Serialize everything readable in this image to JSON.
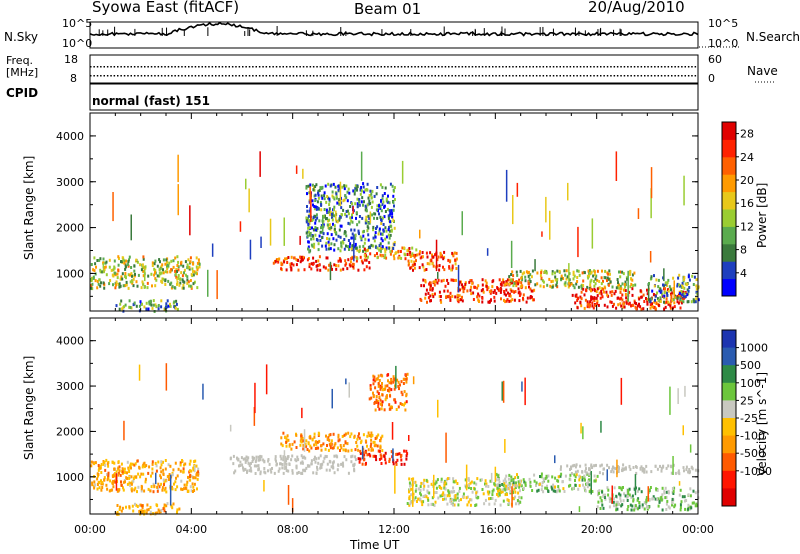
{
  "header": {
    "title": "Syowa East (fitACF)",
    "beam": "Beam 01",
    "date": "20/Aug/2010"
  },
  "top_panels": {
    "nsky_label": "N.Sky",
    "nsearch_label": "N.Search",
    "noise_ticks": [
      "10^5",
      "10^0"
    ],
    "freq_label": "Freq.",
    "freq_unit": "[MHz]",
    "freq_ticks": [
      "18",
      "8"
    ],
    "nave_label": "Nave",
    "nave_ticks": [
      "60",
      "0"
    ],
    "cpid_label": "CPID",
    "cpid_value": "normal (fast) 151"
  },
  "colors": {
    "power": [
      "#0000ff",
      "#1e3fbf",
      "#3a7a3c",
      "#5aab4e",
      "#9acd32",
      "#e8c81a",
      "#ff9a00",
      "#ff6000",
      "#ff2200",
      "#e00000"
    ],
    "velocity": [
      "#1c34b0",
      "#2a5bb0",
      "#2e8a46",
      "#6cc63c",
      "#c8c8c0",
      "#ffc000",
      "#ff9a00",
      "#ff5a00",
      "#ff1500",
      "#e00000"
    ],
    "ground_scatter": "#c0c0b8"
  },
  "chart_data": [
    {
      "type": "heatmap",
      "title": "",
      "xlabel": "",
      "ylabel": "Slant Range [km]",
      "x_ticks": [
        "00:00",
        "04:00",
        "08:00",
        "12:00",
        "16:00",
        "20:00",
        "00:00"
      ],
      "y_ticks": [
        1000,
        2000,
        3000,
        4000
      ],
      "xlim_hours": [
        0,
        24
      ],
      "ylim_km": [
        180,
        4500
      ],
      "colorbar_label": "Power [dB]",
      "colorbar_ticks": [
        4,
        8,
        12,
        16,
        20,
        24,
        28
      ],
      "colorbar_range": [
        0,
        30
      ],
      "regions": [
        {
          "t": [
            0.0,
            4.3
          ],
          "r": [
            700,
            1400
          ],
          "val": 14
        },
        {
          "t": [
            1.0,
            3.5
          ],
          "r": [
            200,
            450
          ],
          "val": 10
        },
        {
          "t": [
            7.2,
            11.0
          ],
          "r": [
            1100,
            1400
          ],
          "val": 26
        },
        {
          "t": [
            10.5,
            13.0
          ],
          "r": [
            1350,
            1600
          ],
          "val": 20
        },
        {
          "t": [
            12.5,
            14.5
          ],
          "r": [
            1100,
            1500
          ],
          "val": 24
        },
        {
          "t": [
            13.0,
            17.5
          ],
          "r": [
            400,
            900
          ],
          "val": 26
        },
        {
          "t": [
            16.5,
            21.5
          ],
          "r": [
            700,
            1100
          ],
          "val": 14
        },
        {
          "t": [
            19.0,
            23.5
          ],
          "r": [
            250,
            700
          ],
          "val": 26
        },
        {
          "t": [
            22.0,
            24.0
          ],
          "r": [
            400,
            1000
          ],
          "val": 10
        },
        {
          "t": [
            8.5,
            12.0
          ],
          "r": [
            1500,
            3000
          ],
          "val": 8
        }
      ]
    },
    {
      "type": "heatmap",
      "title": "",
      "xlabel": "Time UT",
      "ylabel": "Slant Range [km]",
      "x_ticks": [
        "00:00",
        "04:00",
        "08:00",
        "12:00",
        "16:00",
        "20:00",
        "00:00"
      ],
      "y_ticks": [
        1000,
        2000,
        3000,
        4000
      ],
      "xlim_hours": [
        0,
        24
      ],
      "ylim_km": [
        180,
        4500
      ],
      "colorbar_label": "Velocity [m s^-1]",
      "colorbar_ticks": [
        1000,
        500,
        100,
        25,
        -25,
        -100,
        -500,
        -1000
      ],
      "colorbar_range": [
        -1000,
        1000
      ],
      "regions": [
        {
          "t": [
            0.0,
            4.3
          ],
          "r": [
            700,
            1400
          ],
          "val": -200
        },
        {
          "t": [
            1.0,
            3.5
          ],
          "r": [
            200,
            450
          ],
          "val": -200
        },
        {
          "t": [
            5.5,
            10.5
          ],
          "r": [
            1100,
            1500
          ],
          "val": 0,
          "ground": true
        },
        {
          "t": [
            7.5,
            11.5
          ],
          "r": [
            1600,
            2000
          ],
          "val": -300
        },
        {
          "t": [
            10.5,
            12.5
          ],
          "r": [
            1300,
            1600
          ],
          "val": -700
        },
        {
          "t": [
            12.5,
            17.0
          ],
          "r": [
            400,
            1000
          ],
          "val": 100
        },
        {
          "t": [
            16.0,
            20.0
          ],
          "r": [
            700,
            1100
          ],
          "val": 200
        },
        {
          "t": [
            18.5,
            24.0
          ],
          "r": [
            1100,
            1300
          ],
          "val": 0,
          "ground": true
        },
        {
          "t": [
            20.0,
            24.0
          ],
          "r": [
            300,
            800
          ],
          "val": 250
        },
        {
          "t": [
            11.0,
            12.5
          ],
          "r": [
            2500,
            3300
          ],
          "val": -400
        }
      ]
    }
  ]
}
